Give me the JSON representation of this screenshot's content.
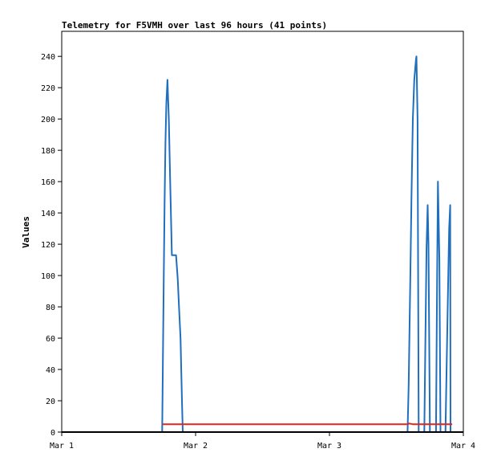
{
  "chart_data": {
    "type": "line",
    "title": "Telemetry for F5VMH over last 96 hours (41 points)",
    "ylabel": "Values",
    "xlabel": "",
    "x_ticks": [
      "Mar 1",
      "Mar 2",
      "Mar 3",
      "Mar 4"
    ],
    "x_range_hours": [
      0,
      72
    ],
    "ylim": [
      0,
      256
    ],
    "y_ticks": [
      0,
      20,
      40,
      60,
      80,
      100,
      120,
      140,
      160,
      180,
      200,
      220,
      240
    ],
    "grid": false,
    "series": [
      {
        "color": "#1f6fbf",
        "points": [
          [
            18.0,
            0
          ],
          [
            18.1,
            30
          ],
          [
            18.3,
            100
          ],
          [
            18.45,
            150
          ],
          [
            18.6,
            185
          ],
          [
            18.75,
            210
          ],
          [
            18.95,
            225
          ],
          [
            19.2,
            200
          ],
          [
            19.45,
            160
          ],
          [
            19.75,
            113
          ],
          [
            20.5,
            113
          ],
          [
            20.8,
            98
          ],
          [
            21.05,
            78
          ],
          [
            21.3,
            60
          ],
          [
            21.55,
            20
          ],
          [
            21.7,
            0
          ],
          [
            62.0,
            0
          ],
          [
            62.2,
            30
          ],
          [
            62.5,
            100
          ],
          [
            62.7,
            150
          ],
          [
            62.95,
            200
          ],
          [
            63.2,
            225
          ],
          [
            63.5,
            238
          ],
          [
            63.6,
            240
          ],
          [
            63.8,
            200
          ],
          [
            64.0,
            0
          ],
          [
            65.0,
            0
          ],
          [
            65.2,
            60
          ],
          [
            65.4,
            118
          ],
          [
            65.6,
            145
          ],
          [
            65.75,
            120
          ],
          [
            66.0,
            0
          ],
          [
            67.1,
            0
          ],
          [
            67.3,
            100
          ],
          [
            67.45,
            160
          ],
          [
            67.7,
            110
          ],
          [
            67.9,
            0
          ],
          [
            68.8,
            0
          ],
          [
            69.1,
            60
          ],
          [
            69.3,
            100
          ],
          [
            69.45,
            130
          ],
          [
            69.65,
            145
          ],
          [
            69.7,
            0
          ]
        ]
      },
      {
        "color": "#e0261f",
        "points": [
          [
            18.0,
            5
          ],
          [
            62.0,
            5
          ],
          [
            62.3,
            5.5
          ],
          [
            63.0,
            5
          ],
          [
            70.0,
            5
          ]
        ]
      },
      {
        "color": "#000000",
        "points": [
          [
            0,
            0
          ],
          [
            72,
            0
          ]
        ]
      }
    ]
  }
}
